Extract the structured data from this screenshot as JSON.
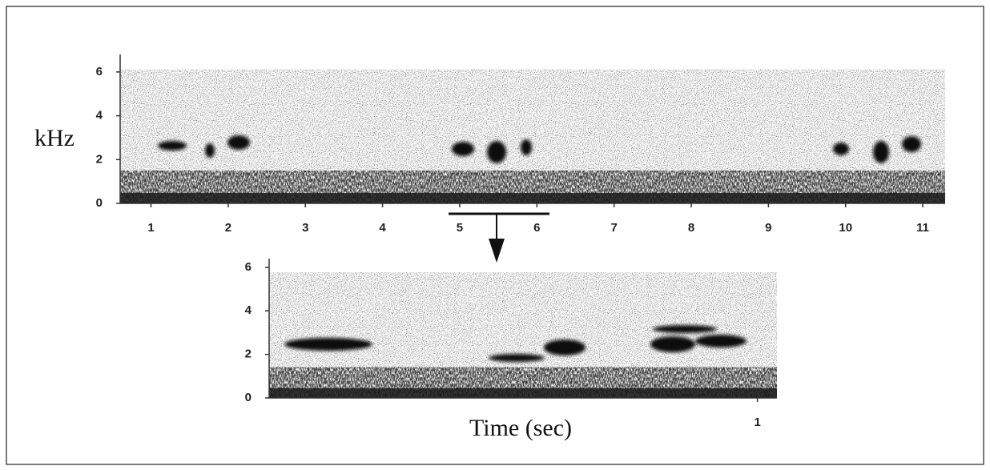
{
  "chart_data": [
    {
      "type": "spectrogram",
      "ylabel": "kHz",
      "xlim": [
        0.6,
        11.29
      ],
      "xticks": [
        1,
        2,
        3,
        4,
        5,
        6,
        7,
        8,
        9,
        10,
        11
      ],
      "ylim": [
        0,
        6.8
      ],
      "yticks": [
        0,
        2,
        4,
        6
      ]
    },
    {
      "type": "spectrogram",
      "xlabel": "Time (sec)",
      "xlim": [
        0,
        1.04
      ],
      "xticks": [
        1
      ],
      "ylim": [
        0,
        6.4
      ],
      "yticks": [
        0,
        2,
        4,
        6
      ]
    }
  ]
}
